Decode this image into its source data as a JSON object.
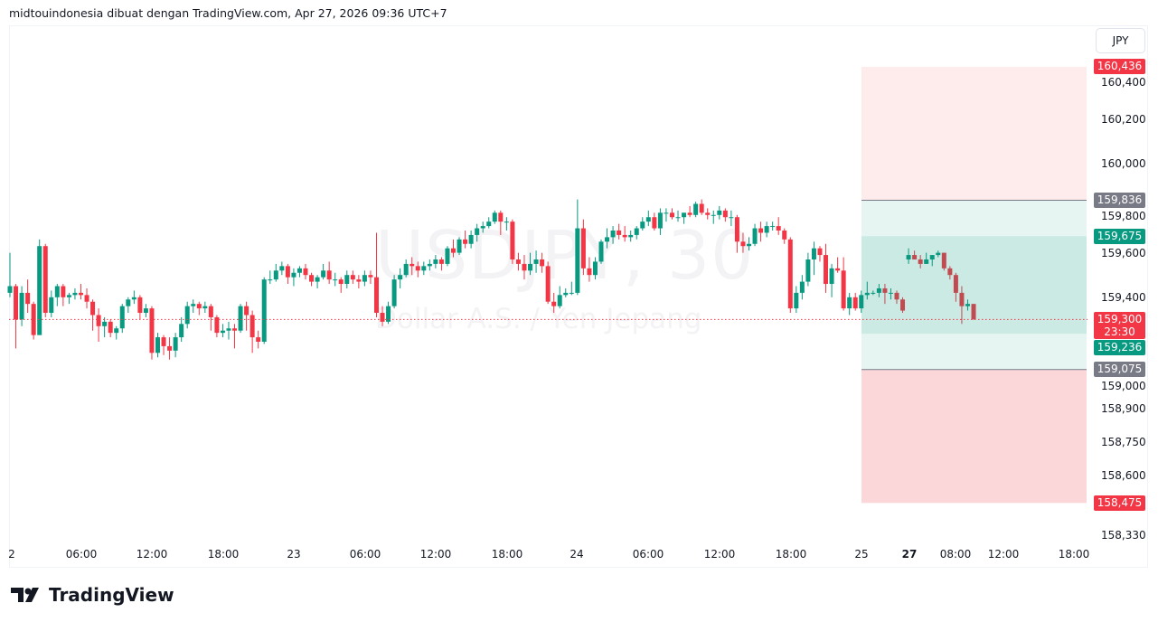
{
  "header": {
    "attribution": "midtouindonesia dibuat dengan TradingView.com, Apr 27, 2026 09:36 UTC+7"
  },
  "watermark": {
    "symbol": "USDJPY, 30",
    "description": "Dollar A.S. / Yen Jepang"
  },
  "price_axis": {
    "currency": "JPY",
    "ticks": [
      "160,400",
      "160,200",
      "160,000",
      "159,800",
      "159,600",
      "159,400",
      "159,000",
      "158,900",
      "158,750",
      "158,600",
      "158,330"
    ],
    "tick_values": [
      160.4,
      160.2,
      160.0,
      159.8,
      159.6,
      159.4,
      159.0,
      158.9,
      158.75,
      158.6,
      158.33
    ]
  },
  "badges": [
    {
      "label": "160,436",
      "value": 160.436,
      "color": "#f23645"
    },
    {
      "label": "159,836",
      "value": 159.836,
      "color": "#787b86"
    },
    {
      "label": "159,675",
      "value": 159.675,
      "color": "#089981"
    },
    {
      "label": "159,236",
      "value": 159.236,
      "color": "#089981"
    },
    {
      "label": "159,075",
      "value": 159.075,
      "color": "#787b86"
    },
    {
      "label": "158,475",
      "value": 158.475,
      "color": "#f23645"
    }
  ],
  "last_price": {
    "label": "159,300",
    "value": 159.3,
    "countdown": "23:30",
    "color": "#f23645"
  },
  "time_axis": {
    "labels": [
      "2",
      "06:00",
      "12:00",
      "18:00",
      "23",
      "06:00",
      "12:00",
      "18:00",
      "24",
      "06:00",
      "12:00",
      "18:00",
      "25",
      "27",
      "08:00",
      "12:00",
      "18:00"
    ]
  },
  "position_tool": {
    "top": 160.436,
    "entry": 159.836,
    "inner_top": 159.675,
    "inner_bottom": 159.236,
    "mid": 159.075,
    "bottom": 158.475
  },
  "colors": {
    "up": "#089981",
    "down": "#f23645",
    "grid_line": "#787b86"
  },
  "logo": {
    "text": "TradingView"
  },
  "chart_data": {
    "type": "candlestick",
    "symbol": "USDJPY",
    "interval": "30",
    "ylim": [
      158.33,
      160.45
    ],
    "candles": [
      [
        159.42,
        159.6,
        159.4,
        159.45
      ],
      [
        159.45,
        159.46,
        159.17,
        159.3
      ],
      [
        159.3,
        159.45,
        159.27,
        159.42
      ],
      [
        159.42,
        159.48,
        159.33,
        159.37
      ],
      [
        159.37,
        159.38,
        159.21,
        159.23
      ],
      [
        159.23,
        159.66,
        159.23,
        159.63
      ],
      [
        159.63,
        159.64,
        159.31,
        159.33
      ],
      [
        159.33,
        159.43,
        159.31,
        159.4
      ],
      [
        159.4,
        159.46,
        159.36,
        159.45
      ],
      [
        159.45,
        159.46,
        159.36,
        159.4
      ],
      [
        159.4,
        159.42,
        159.37,
        159.41
      ],
      [
        159.41,
        159.44,
        159.39,
        159.42
      ],
      [
        159.42,
        159.46,
        159.39,
        159.41
      ],
      [
        159.41,
        159.44,
        159.35,
        159.38
      ],
      [
        159.38,
        159.39,
        159.25,
        159.32
      ],
      [
        159.32,
        159.35,
        159.2,
        159.27
      ],
      [
        159.27,
        159.31,
        159.22,
        159.29
      ],
      [
        159.29,
        159.3,
        159.22,
        159.24
      ],
      [
        159.24,
        159.27,
        159.21,
        159.26
      ],
      [
        159.26,
        159.37,
        159.24,
        159.36
      ],
      [
        159.36,
        159.4,
        159.33,
        159.39
      ],
      [
        159.39,
        159.43,
        159.37,
        159.4
      ],
      [
        159.4,
        159.41,
        159.3,
        159.33
      ],
      [
        159.33,
        159.37,
        159.31,
        159.35
      ],
      [
        159.35,
        159.36,
        159.12,
        159.15
      ],
      [
        159.15,
        159.24,
        159.13,
        159.22
      ],
      [
        159.22,
        159.23,
        159.14,
        159.18
      ],
      [
        159.18,
        159.22,
        159.12,
        159.16
      ],
      [
        159.16,
        159.24,
        159.13,
        159.22
      ],
      [
        159.22,
        159.31,
        159.2,
        159.28
      ],
      [
        159.28,
        159.38,
        159.26,
        159.36
      ],
      [
        159.36,
        159.39,
        159.33,
        159.37
      ],
      [
        159.37,
        159.38,
        159.32,
        159.35
      ],
      [
        159.35,
        159.38,
        159.33,
        159.36
      ],
      [
        159.36,
        159.37,
        159.25,
        159.31
      ],
      [
        159.31,
        159.32,
        159.22,
        159.24
      ],
      [
        159.24,
        159.28,
        159.22,
        159.25
      ],
      [
        159.25,
        159.29,
        159.21,
        159.26
      ],
      [
        159.26,
        159.28,
        159.17,
        159.25
      ],
      [
        159.25,
        159.37,
        159.24,
        159.36
      ],
      [
        159.36,
        159.38,
        159.25,
        159.32
      ],
      [
        159.32,
        159.34,
        159.15,
        159.22
      ],
      [
        159.22,
        159.25,
        159.17,
        159.2
      ],
      [
        159.2,
        159.49,
        159.19,
        159.48
      ],
      [
        159.48,
        159.52,
        159.46,
        159.48
      ],
      [
        159.48,
        159.55,
        159.47,
        159.52
      ],
      [
        159.52,
        159.56,
        159.5,
        159.54
      ],
      [
        159.54,
        159.55,
        159.46,
        159.49
      ],
      [
        159.49,
        159.53,
        159.45,
        159.51
      ],
      [
        159.51,
        159.54,
        159.49,
        159.53
      ],
      [
        159.53,
        159.55,
        159.48,
        159.5
      ],
      [
        159.5,
        159.51,
        159.45,
        159.47
      ],
      [
        159.47,
        159.5,
        159.44,
        159.49
      ],
      [
        159.49,
        159.55,
        159.48,
        159.52
      ],
      [
        159.52,
        159.56,
        159.46,
        159.48
      ],
      [
        159.48,
        159.51,
        159.45,
        159.48
      ],
      [
        159.48,
        159.49,
        159.42,
        159.46
      ],
      [
        159.46,
        159.52,
        159.44,
        159.5
      ],
      [
        159.5,
        159.52,
        159.46,
        159.48
      ],
      [
        159.48,
        159.5,
        159.44,
        159.47
      ],
      [
        159.47,
        159.52,
        159.45,
        159.5
      ],
      [
        159.5,
        159.52,
        159.46,
        159.49
      ],
      [
        159.49,
        159.69,
        159.31,
        159.33
      ],
      [
        159.33,
        159.36,
        159.27,
        159.29
      ],
      [
        159.29,
        159.38,
        159.28,
        159.36
      ],
      [
        159.36,
        159.5,
        159.35,
        159.48
      ],
      [
        159.48,
        159.53,
        159.44,
        159.5
      ],
      [
        159.5,
        159.57,
        159.49,
        159.55
      ],
      [
        159.55,
        159.58,
        159.5,
        159.54
      ],
      [
        159.54,
        159.56,
        159.49,
        159.52
      ],
      [
        159.52,
        159.56,
        159.5,
        159.54
      ],
      [
        159.54,
        159.57,
        159.52,
        159.55
      ],
      [
        159.55,
        159.59,
        159.53,
        159.57
      ],
      [
        159.57,
        159.58,
        159.52,
        159.55
      ],
      [
        159.55,
        159.63,
        159.54,
        159.62
      ],
      [
        159.62,
        159.66,
        159.58,
        159.6
      ],
      [
        159.6,
        159.67,
        159.59,
        159.66
      ],
      [
        159.66,
        159.7,
        159.62,
        159.64
      ],
      [
        159.64,
        159.7,
        159.62,
        159.68
      ],
      [
        159.68,
        159.73,
        159.65,
        159.71
      ],
      [
        159.71,
        159.74,
        159.69,
        159.72
      ],
      [
        159.72,
        159.76,
        159.71,
        159.74
      ],
      [
        159.74,
        159.79,
        159.73,
        159.78
      ],
      [
        159.78,
        159.79,
        159.68,
        159.74
      ],
      [
        159.74,
        159.76,
        159.7,
        159.74
      ],
      [
        159.74,
        159.75,
        159.55,
        159.57
      ],
      [
        159.57,
        159.6,
        159.52,
        159.55
      ],
      [
        159.55,
        159.59,
        159.48,
        159.52
      ],
      [
        159.52,
        159.6,
        159.5,
        159.55
      ],
      [
        159.55,
        159.61,
        159.51,
        159.57
      ],
      [
        159.57,
        159.6,
        159.51,
        159.54
      ],
      [
        159.54,
        159.56,
        159.37,
        159.38
      ],
      [
        159.38,
        159.42,
        159.33,
        159.36
      ],
      [
        159.36,
        159.45,
        159.35,
        159.41
      ],
      [
        159.41,
        159.44,
        159.4,
        159.42
      ],
      [
        159.42,
        159.47,
        159.41,
        159.42
      ],
      [
        159.42,
        159.84,
        159.41,
        159.71
      ],
      [
        159.71,
        159.75,
        159.5,
        159.53
      ],
      [
        159.53,
        159.58,
        159.47,
        159.5
      ],
      [
        159.5,
        159.58,
        159.48,
        159.56
      ],
      [
        159.56,
        159.66,
        159.55,
        159.65
      ],
      [
        159.65,
        159.71,
        159.62,
        159.67
      ],
      [
        159.67,
        159.72,
        159.64,
        159.7
      ],
      [
        159.7,
        159.73,
        159.66,
        159.68
      ],
      [
        159.68,
        159.72,
        159.65,
        159.67
      ],
      [
        159.67,
        159.7,
        159.65,
        159.68
      ],
      [
        159.68,
        159.72,
        159.66,
        159.71
      ],
      [
        159.71,
        159.76,
        159.7,
        159.74
      ],
      [
        159.74,
        159.79,
        159.72,
        159.76
      ],
      [
        159.76,
        159.78,
        159.7,
        159.71
      ],
      [
        159.71,
        159.8,
        159.68,
        159.78
      ],
      [
        159.78,
        159.8,
        159.74,
        159.78
      ],
      [
        159.78,
        159.8,
        159.75,
        159.76
      ],
      [
        159.76,
        159.79,
        159.74,
        159.76
      ],
      [
        159.76,
        159.78,
        159.73,
        159.78
      ],
      [
        159.78,
        159.81,
        159.76,
        159.77
      ],
      [
        159.77,
        159.83,
        159.76,
        159.82
      ],
      [
        159.82,
        159.84,
        159.77,
        159.78
      ],
      [
        159.78,
        159.8,
        159.75,
        159.77
      ],
      [
        159.77,
        159.79,
        159.73,
        159.77
      ],
      [
        159.77,
        159.81,
        159.75,
        159.79
      ],
      [
        159.79,
        159.8,
        159.74,
        159.76
      ],
      [
        159.76,
        159.79,
        159.72,
        159.76
      ],
      [
        159.76,
        159.77,
        159.6,
        159.65
      ],
      [
        159.65,
        159.69,
        159.6,
        159.63
      ],
      [
        159.63,
        159.67,
        159.61,
        159.64
      ],
      [
        159.64,
        159.73,
        159.63,
        159.71
      ],
      [
        159.71,
        159.74,
        159.65,
        159.69
      ],
      [
        159.69,
        159.74,
        159.67,
        159.72
      ],
      [
        159.72,
        159.74,
        159.7,
        159.72
      ],
      [
        159.72,
        159.76,
        159.68,
        159.7
      ],
      [
        159.7,
        159.71,
        159.64,
        159.66
      ],
      [
        159.66,
        159.67,
        159.33,
        159.35
      ],
      [
        159.35,
        159.45,
        159.33,
        159.42
      ],
      [
        159.42,
        159.5,
        159.39,
        159.47
      ],
      [
        159.47,
        159.6,
        159.45,
        159.57
      ],
      [
        159.57,
        159.65,
        159.5,
        159.62
      ],
      [
        159.62,
        159.63,
        159.56,
        159.59
      ],
      [
        159.59,
        159.64,
        159.42,
        159.46
      ],
      [
        159.46,
        159.55,
        159.4,
        159.53
      ],
      [
        159.53,
        159.58,
        159.51,
        159.52
      ],
      [
        159.52,
        159.58,
        159.34,
        159.35
      ],
      [
        159.35,
        159.42,
        159.32,
        159.4
      ],
      [
        159.4,
        159.42,
        159.34,
        159.35
      ],
      [
        159.35,
        159.43,
        159.33,
        159.41
      ],
      [
        159.41,
        159.47,
        159.39,
        159.42
      ],
      [
        159.42,
        159.43,
        159.41,
        159.42
      ],
      [
        159.42,
        159.46,
        159.4,
        159.44
      ],
      [
        159.44,
        159.46,
        159.37,
        159.42
      ],
      [
        159.42,
        159.44,
        159.39,
        159.42
      ],
      [
        159.42,
        159.43,
        159.37,
        159.39
      ],
      [
        159.39,
        159.4,
        159.33,
        159.34
      ],
      [
        159.57,
        159.62,
        159.55,
        159.59
      ],
      [
        159.59,
        159.61,
        159.57,
        159.57
      ],
      [
        159.57,
        159.59,
        159.53,
        159.55
      ],
      [
        159.55,
        159.6,
        159.55,
        159.57
      ],
      [
        159.57,
        159.59,
        159.54,
        159.59
      ],
      [
        159.59,
        159.61,
        159.58,
        159.6
      ],
      [
        159.6,
        159.6,
        159.52,
        159.53
      ],
      [
        159.53,
        159.54,
        159.48,
        159.5
      ],
      [
        159.5,
        159.51,
        159.38,
        159.42
      ],
      [
        159.42,
        159.45,
        159.28,
        159.36
      ],
      [
        159.36,
        159.39,
        159.34,
        159.37
      ],
      [
        159.37,
        159.37,
        159.3,
        159.3
      ]
    ]
  }
}
